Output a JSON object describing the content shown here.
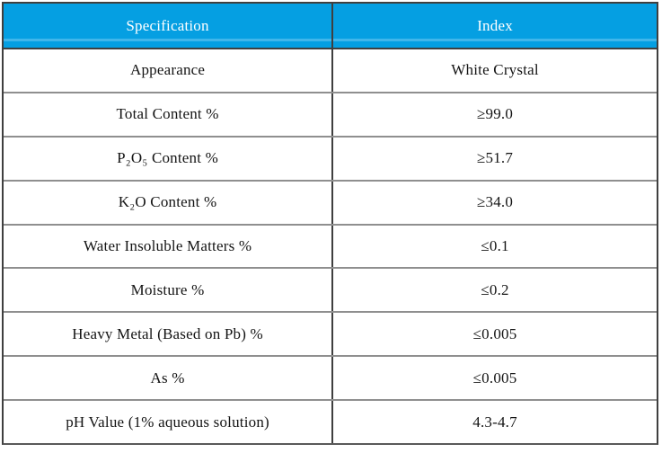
{
  "theme": {
    "header-bg": "#059fe2",
    "header-stripe": "#41b6ea",
    "header-text": "#ffffff",
    "row-bg": "#ffffff",
    "row-text": "#141414",
    "border-dark": "#3f3f3f",
    "border-mid": "#5a5a5a",
    "border-light": "#8f8f8f"
  },
  "table": {
    "columns": [
      "Specification",
      "Index"
    ],
    "rows": [
      {
        "spec": "Appearance",
        "index": "White Crystal"
      },
      {
        "spec": "Total Content %",
        "index": "≥99.0"
      },
      {
        "spec": "P₂O₅ Content %",
        "index": "≥51.7"
      },
      {
        "spec": "K₂O Content %",
        "index": "≥34.0"
      },
      {
        "spec": "Water Insoluble Matters %",
        "index": "≤0.1"
      },
      {
        "spec": "Moisture %",
        "index": "≤0.2"
      },
      {
        "spec": "Heavy Metal (Based on Pb) %",
        "index": "≤0.005"
      },
      {
        "spec": "As %",
        "index": "≤0.005"
      },
      {
        "spec": "pH Value (1% aqueous solution)",
        "index": "4.3-4.7"
      }
    ]
  }
}
